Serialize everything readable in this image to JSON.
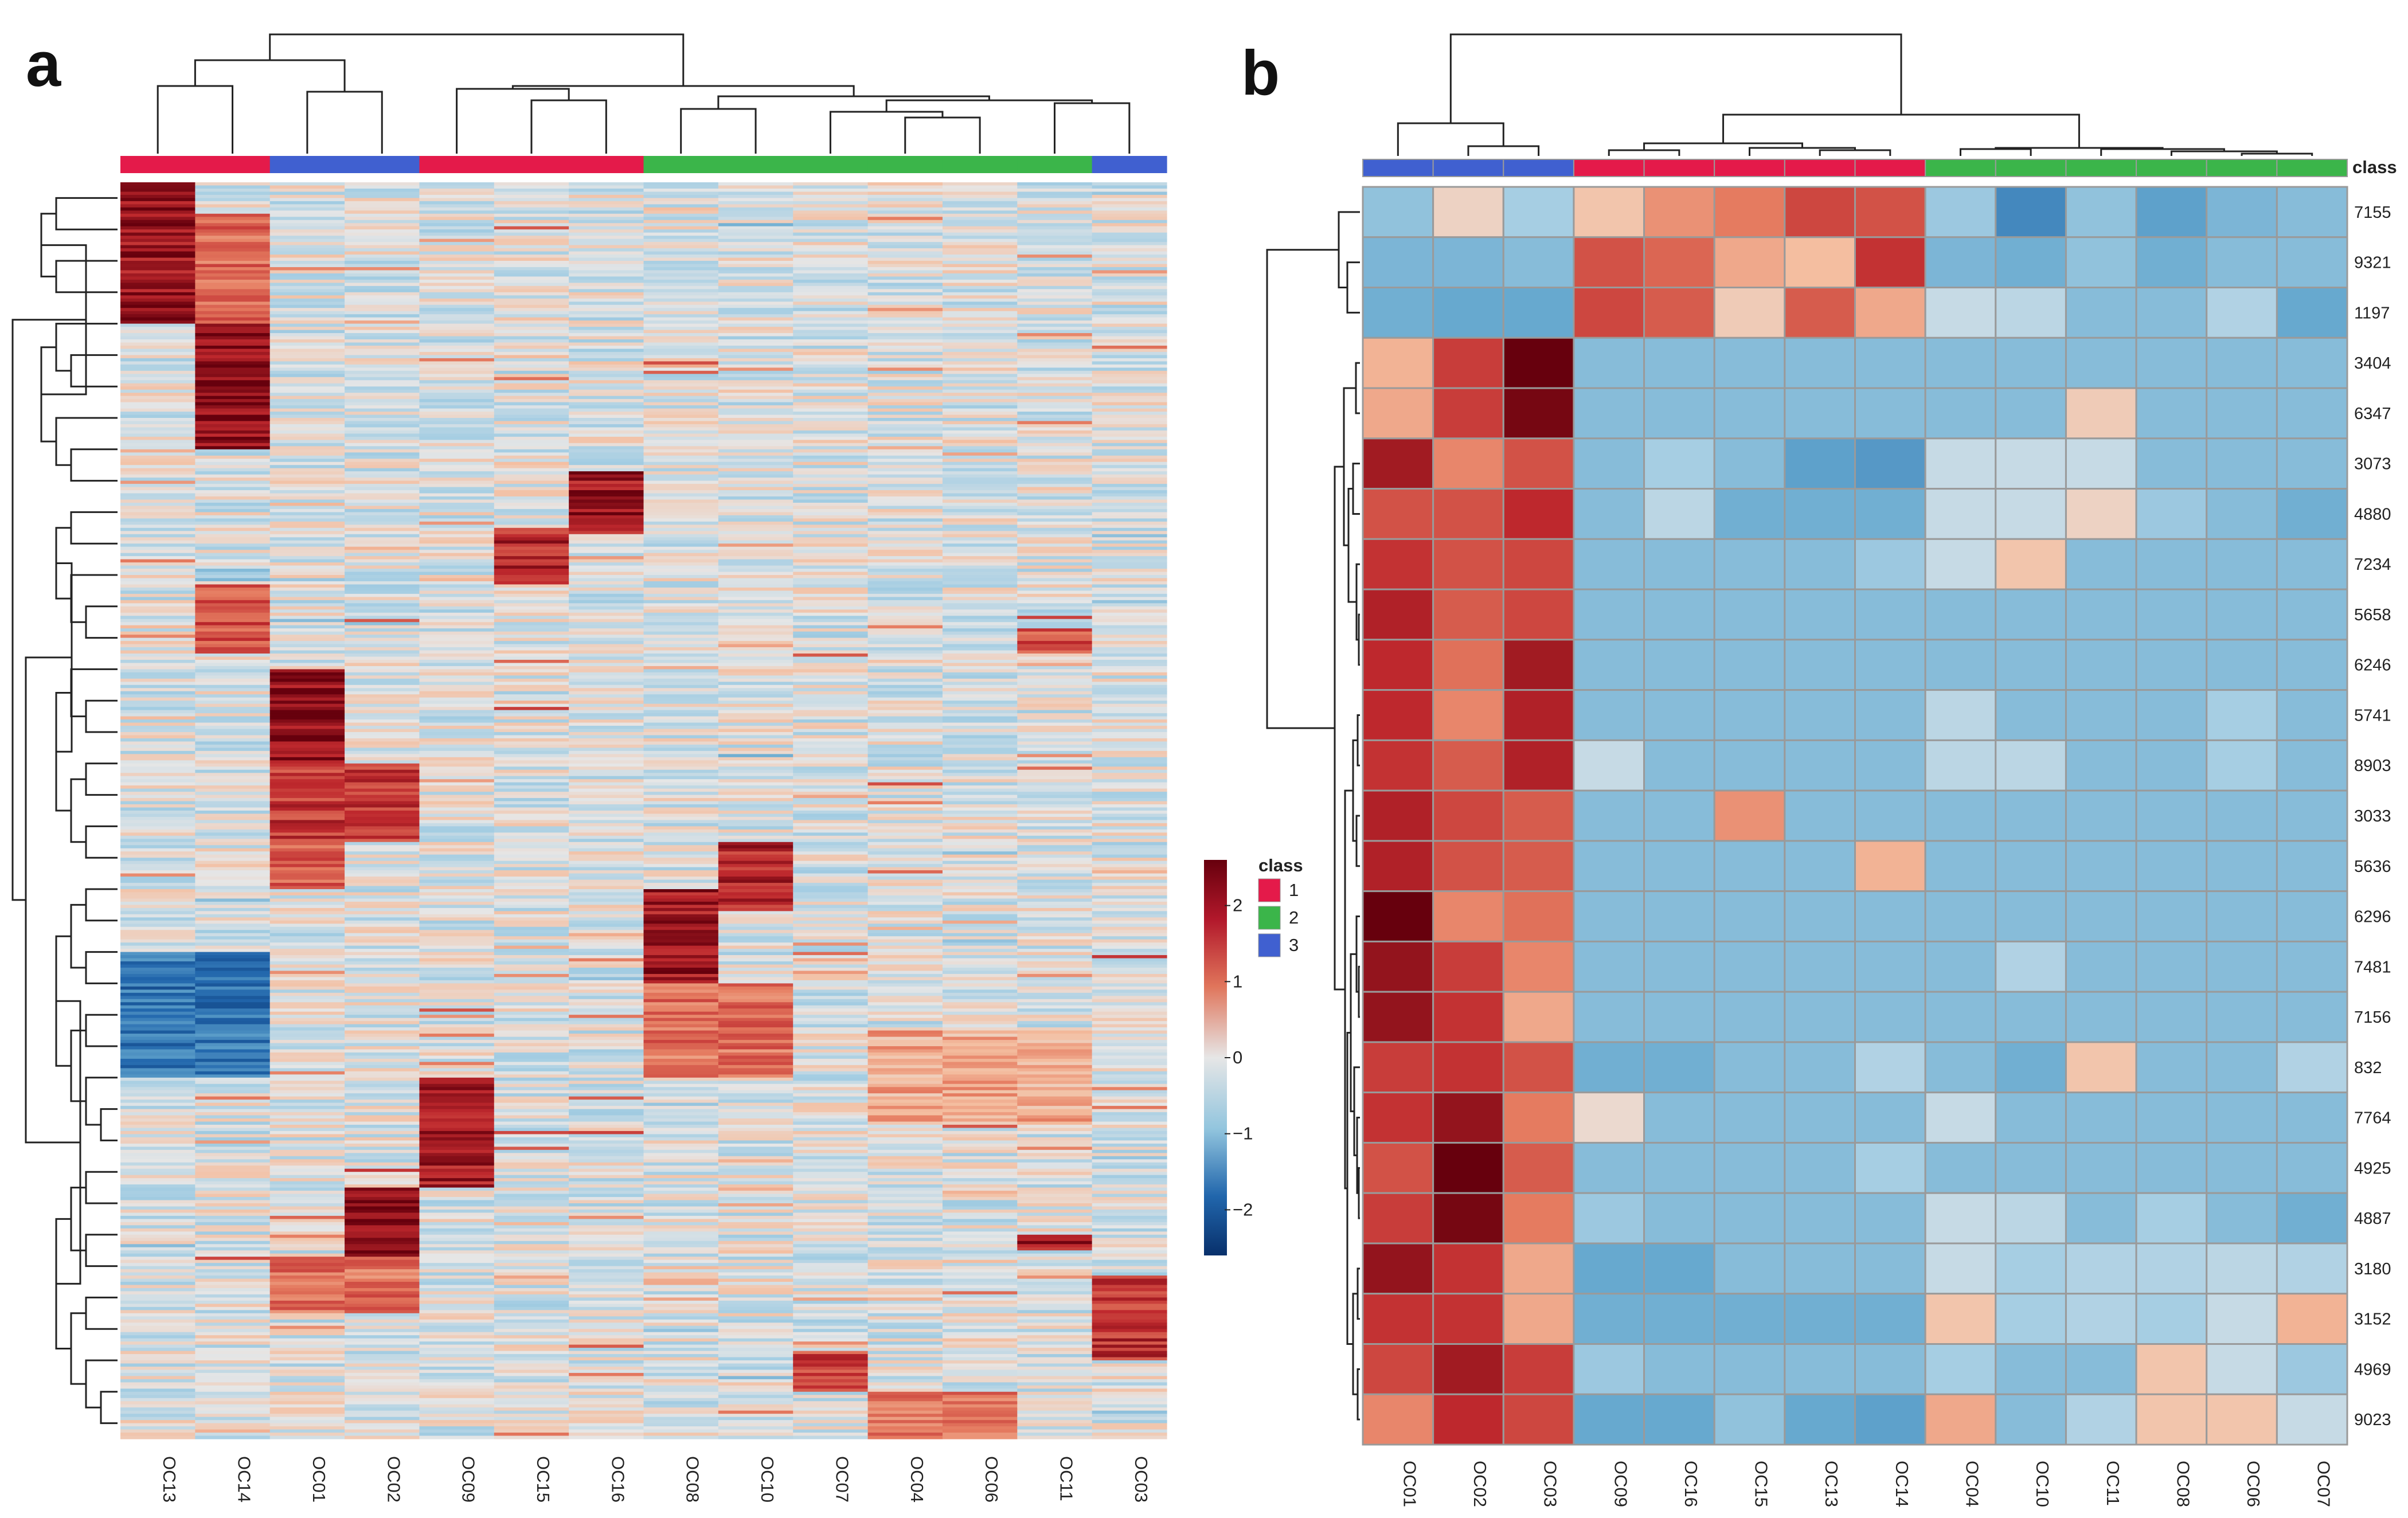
{
  "panels": {
    "a": "a",
    "b": "b"
  },
  "colors": {
    "class1": "#e41a4a",
    "class2": "#3bb54a",
    "class3": "#4060d0",
    "scale_low": "#08306b",
    "scale_mid": "#e6e6e6",
    "scale_high": "#67000d"
  },
  "legend": {
    "class_title": "class",
    "classes": [
      "1",
      "2",
      "3"
    ],
    "scale_ticks": [
      "2",
      "1",
      "0",
      "−1",
      "−2"
    ],
    "scale_values": [
      2,
      1,
      0,
      -1,
      -2
    ],
    "scale_range": [
      -2.6,
      2.6
    ]
  },
  "chart_data": [
    {
      "type": "heatmap",
      "title": "a",
      "columns": [
        "OC13",
        "OC14",
        "OC01",
        "OC02",
        "OC09",
        "OC15",
        "OC16",
        "OC08",
        "OC10",
        "OC07",
        "OC04",
        "OC06",
        "OC11",
        "OC03"
      ],
      "column_classes": [
        "1",
        "1",
        "3",
        "3",
        "1",
        "1",
        "1",
        "2",
        "2",
        "2",
        "2",
        "2",
        "2",
        "3"
      ],
      "row_count": "approx. 400 metabolite features (row labels not shown)",
      "value_range": [
        -2.6,
        2.6
      ],
      "clusters": [
        {
          "columns": [
            "OC13"
          ],
          "high_rows": "top section"
        },
        {
          "columns": [
            "OC14"
          ],
          "high_rows": "upper section"
        },
        {
          "columns": [
            "OC01",
            "OC02"
          ],
          "high_rows": "middle section"
        },
        {
          "columns": [
            "OC08",
            "OC10"
          ],
          "high_rows": "lower-middle section"
        },
        {
          "columns": [
            "OC09"
          ],
          "high_rows": "lower section"
        },
        {
          "columns": [
            "OC03"
          ],
          "high_rows": "bottom section"
        }
      ]
    },
    {
      "type": "heatmap",
      "title": "b",
      "columns": [
        "OC01",
        "OC02",
        "OC03",
        "OC09",
        "OC16",
        "OC15",
        "OC13",
        "OC14",
        "OC04",
        "OC10",
        "OC11",
        "OC08",
        "OC06",
        "OC07"
      ],
      "column_classes": [
        "3",
        "3",
        "3",
        "1",
        "1",
        "1",
        "1",
        "1",
        "2",
        "2",
        "2",
        "2",
        "2",
        "2"
      ],
      "rows": [
        "7155",
        "9321",
        "1197",
        "3404",
        "6347",
        "3073",
        "4880",
        "7234",
        "5658",
        "6246",
        "5741",
        "8903",
        "3033",
        "5636",
        "6296",
        "7481",
        "7156",
        "832",
        "7764",
        "4925",
        "4887",
        "3180",
        "3152",
        "4969",
        "9023"
      ],
      "values": [
        [
          -0.8,
          0.3,
          -0.6,
          0.5,
          1.0,
          1.2,
          1.7,
          1.6,
          -0.7,
          -1.6,
          -0.8,
          -1.3,
          -1.0,
          -0.9
        ],
        [
          -1.0,
          -1.0,
          -0.9,
          1.6,
          1.4,
          0.8,
          0.6,
          1.9,
          -1.0,
          -1.1,
          -0.8,
          -1.1,
          -0.9,
          -0.9
        ],
        [
          -1.1,
          -1.2,
          -1.2,
          1.7,
          1.5,
          0.4,
          1.5,
          0.8,
          -0.3,
          -0.4,
          -0.9,
          -0.9,
          -0.5,
          -1.2
        ],
        [
          0.7,
          1.8,
          2.6,
          -0.9,
          -0.9,
          -0.9,
          -0.9,
          -0.9,
          -0.9,
          -0.9,
          -0.9,
          -0.9,
          -0.9,
          -0.9
        ],
        [
          0.8,
          1.8,
          2.5,
          -0.9,
          -0.9,
          -0.9,
          -0.9,
          -0.9,
          -0.9,
          -0.9,
          0.4,
          -0.9,
          -0.9,
          -0.9
        ],
        [
          2.2,
          1.1,
          1.6,
          -0.9,
          -0.6,
          -0.9,
          -1.3,
          -1.4,
          -0.3,
          -0.3,
          -0.3,
          -0.9,
          -0.9,
          -0.9
        ],
        [
          1.6,
          1.6,
          2.0,
          -0.9,
          -0.4,
          -1.1,
          -1.1,
          -1.1,
          -0.3,
          -0.3,
          0.3,
          -0.7,
          -0.9,
          -1.1
        ],
        [
          1.9,
          1.6,
          1.7,
          -0.9,
          -0.9,
          -0.9,
          -0.9,
          -0.7,
          -0.3,
          0.5,
          -0.9,
          -0.9,
          -0.9,
          -0.9
        ],
        [
          2.1,
          1.5,
          1.7,
          -0.9,
          -0.9,
          -0.9,
          -0.9,
          -0.9,
          -0.9,
          -0.9,
          -0.9,
          -0.9,
          -0.9,
          -0.9
        ],
        [
          2.0,
          1.3,
          2.2,
          -0.9,
          -0.9,
          -0.9,
          -0.9,
          -0.9,
          -0.9,
          -0.9,
          -0.9,
          -0.9,
          -0.9,
          -0.9
        ],
        [
          2.0,
          1.1,
          2.1,
          -0.9,
          -0.9,
          -0.9,
          -0.9,
          -0.9,
          -0.4,
          -0.9,
          -0.9,
          -0.9,
          -0.6,
          -0.9
        ],
        [
          1.9,
          1.5,
          2.1,
          -0.3,
          -0.9,
          -0.9,
          -0.9,
          -0.9,
          -0.4,
          -0.4,
          -0.9,
          -0.9,
          -0.6,
          -0.9
        ],
        [
          2.1,
          1.7,
          1.5,
          -0.9,
          -0.9,
          1.0,
          -0.9,
          -0.9,
          -0.9,
          -0.9,
          -0.9,
          -0.9,
          -0.9,
          -0.9
        ],
        [
          2.1,
          1.6,
          1.5,
          -0.9,
          -0.9,
          -0.9,
          -0.9,
          0.7,
          -0.9,
          -0.9,
          -0.9,
          -0.9,
          -0.9,
          -0.9
        ],
        [
          2.6,
          1.1,
          1.3,
          -0.9,
          -0.9,
          -0.9,
          -0.9,
          -0.9,
          -0.9,
          -0.9,
          -0.9,
          -0.9,
          -0.9,
          -0.9
        ],
        [
          2.3,
          1.8,
          1.1,
          -0.9,
          -0.9,
          -0.9,
          -0.9,
          -0.9,
          -0.9,
          -0.5,
          -0.9,
          -0.9,
          -0.9,
          -0.9
        ],
        [
          2.3,
          1.9,
          0.8,
          -0.9,
          -0.9,
          -0.9,
          -0.9,
          -0.9,
          -0.9,
          -0.9,
          -0.9,
          -0.9,
          -0.9,
          -0.9
        ],
        [
          1.8,
          1.9,
          1.6,
          -1.1,
          -1.1,
          -0.9,
          -0.9,
          -0.5,
          -0.9,
          -1.1,
          0.5,
          -0.9,
          -0.9,
          -0.5
        ],
        [
          1.9,
          2.3,
          1.2,
          0.2,
          -0.9,
          -0.9,
          -0.9,
          -0.9,
          -0.3,
          -0.9,
          -0.9,
          -0.9,
          -0.9,
          -0.9
        ],
        [
          1.6,
          2.6,
          1.5,
          -0.9,
          -0.9,
          -0.9,
          -0.9,
          -0.6,
          -0.9,
          -0.9,
          -0.9,
          -0.9,
          -0.9,
          -0.9
        ],
        [
          1.8,
          2.5,
          1.2,
          -0.7,
          -0.9,
          -0.9,
          -0.9,
          -0.9,
          -0.3,
          -0.4,
          -0.9,
          -0.6,
          -0.9,
          -1.1
        ],
        [
          2.3,
          1.9,
          0.8,
          -1.2,
          -1.2,
          -0.9,
          -0.9,
          -0.9,
          -0.3,
          -0.6,
          -0.5,
          -0.5,
          -0.4,
          -0.5
        ],
        [
          1.9,
          1.9,
          0.8,
          -1.1,
          -1.1,
          -1.1,
          -1.1,
          -1.1,
          0.5,
          -0.6,
          -0.5,
          -0.6,
          -0.3,
          0.7
        ],
        [
          1.7,
          2.2,
          1.8,
          -0.7,
          -0.9,
          -0.9,
          -0.9,
          -0.9,
          -0.6,
          -0.9,
          -0.9,
          0.5,
          -0.3,
          -0.7
        ],
        [
          1.1,
          2.0,
          1.7,
          -1.2,
          -1.2,
          -0.8,
          -1.2,
          -1.3,
          0.8,
          -0.9,
          -0.5,
          0.5,
          0.5,
          -0.3
        ]
      ],
      "value_range": [
        -2.6,
        2.6
      ]
    }
  ]
}
